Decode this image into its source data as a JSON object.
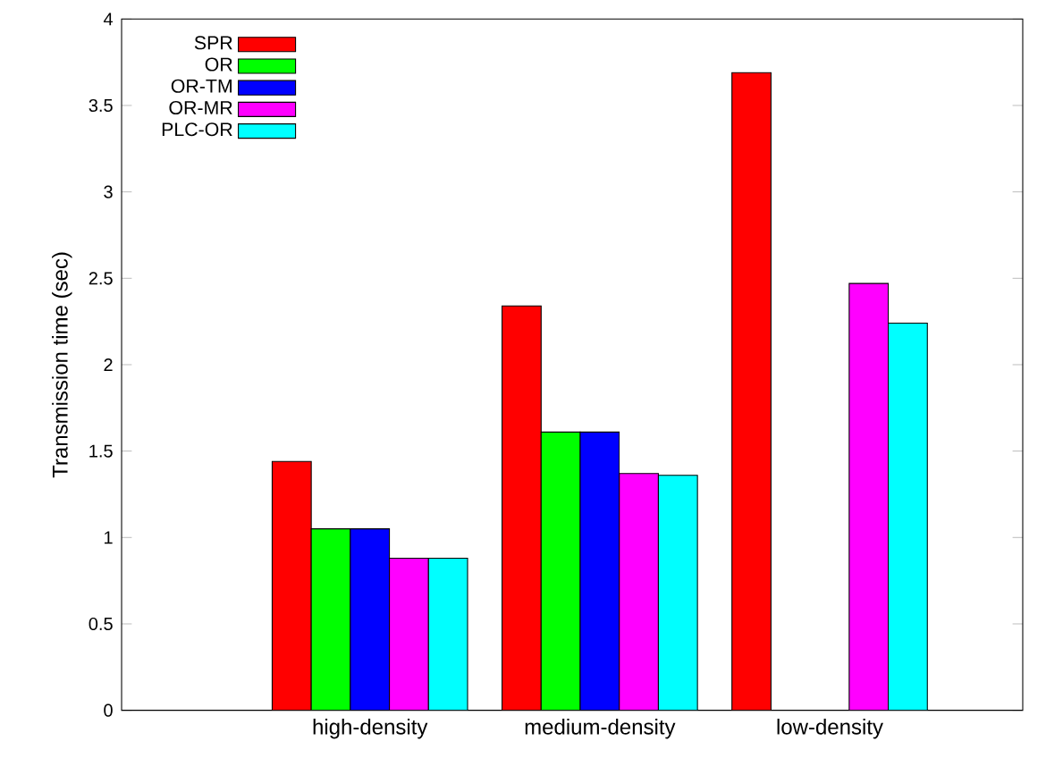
{
  "chart_data": {
    "type": "bar",
    "ylabel": "Transmission time (sec)",
    "categories": [
      "high-density",
      "medium-density",
      "low-density"
    ],
    "series": [
      {
        "name": "SPR",
        "color": "#ff0000",
        "values": [
          1.44,
          2.34,
          3.69
        ]
      },
      {
        "name": "OR",
        "color": "#00ff00",
        "values": [
          1.05,
          1.61,
          null
        ]
      },
      {
        "name": "OR-TM",
        "color": "#0000ff",
        "values": [
          1.05,
          1.61,
          null
        ]
      },
      {
        "name": "OR-MR",
        "color": "#ff00ff",
        "values": [
          0.88,
          1.37,
          2.47
        ]
      },
      {
        "name": "PLC-OR",
        "color": "#00ffff",
        "values": [
          0.88,
          1.36,
          2.24
        ]
      }
    ],
    "ylim": [
      0,
      4
    ],
    "yticks": [
      0,
      0.5,
      1,
      1.5,
      2,
      2.5,
      3,
      3.5,
      4
    ],
    "legend": "top left",
    "grid": false
  }
}
